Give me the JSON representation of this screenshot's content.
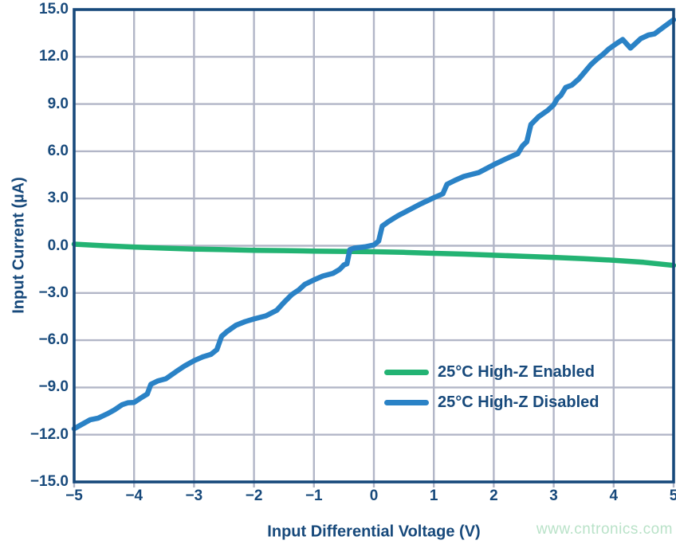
{
  "watermark": {
    "text": "www.cntronics.com",
    "color": "#b9e2c8"
  },
  "style": {
    "axis_text_color": "#17497B",
    "border_color": "#17497B",
    "grid_color": "#b2b6c7",
    "background": "#ffffff",
    "line_width": 6.5,
    "grid_width": 2.4,
    "border_width": 3.6
  },
  "chart_data": {
    "type": "line",
    "title": "",
    "xlabel": "Input Differential Voltage (V)",
    "ylabel": "Input Current (µA)",
    "xlim": [
      -5,
      5
    ],
    "ylim": [
      -15,
      15
    ],
    "grid": true,
    "x_ticks": [
      -5,
      -4,
      -3,
      -2,
      -1,
      0,
      1,
      2,
      3,
      4,
      5
    ],
    "x_tick_labels": [
      "−5",
      "−4",
      "−3",
      "−2",
      "−1",
      "0",
      "1",
      "2",
      "3",
      "4",
      "5"
    ],
    "y_ticks": [
      15,
      12,
      9,
      6,
      3,
      0,
      -3,
      -6,
      -9,
      -12,
      -15
    ],
    "y_tick_labels": [
      "15.0",
      "12.0",
      "9.0",
      "6.0",
      "3.0",
      "0.0",
      "−3.0",
      "−6.0",
      "−9.0",
      "−12.0",
      "−15.0"
    ],
    "legend_position": "inside lower right",
    "series": [
      {
        "name": "25°C High-Z Enabled",
        "color": "#23B373",
        "points": [
          [
            -5.0,
            0.1
          ],
          [
            -4.5,
            0.0
          ],
          [
            -4.0,
            -0.08
          ],
          [
            -3.5,
            -0.15
          ],
          [
            -3.0,
            -0.21
          ],
          [
            -2.5,
            -0.25
          ],
          [
            -2.0,
            -0.29
          ],
          [
            -1.5,
            -0.31
          ],
          [
            -1.0,
            -0.34
          ],
          [
            -0.5,
            -0.36
          ],
          [
            0.0,
            -0.38
          ],
          [
            0.5,
            -0.42
          ],
          [
            1.0,
            -0.48
          ],
          [
            1.5,
            -0.53
          ],
          [
            2.0,
            -0.6
          ],
          [
            2.5,
            -0.67
          ],
          [
            3.0,
            -0.74
          ],
          [
            3.5,
            -0.82
          ],
          [
            4.0,
            -0.92
          ],
          [
            4.5,
            -1.05
          ],
          [
            5.0,
            -1.25
          ]
        ]
      },
      {
        "name": "25°C High-Z Disabled",
        "color": "#2A82C6",
        "points": [
          [
            -5.0,
            -11.62
          ],
          [
            -4.85,
            -11.3
          ],
          [
            -4.73,
            -11.05
          ],
          [
            -4.6,
            -10.95
          ],
          [
            -4.45,
            -10.68
          ],
          [
            -4.33,
            -10.43
          ],
          [
            -4.2,
            -10.1
          ],
          [
            -4.1,
            -9.97
          ],
          [
            -4.0,
            -9.95
          ],
          [
            -3.86,
            -9.6
          ],
          [
            -3.78,
            -9.42
          ],
          [
            -3.72,
            -8.8
          ],
          [
            -3.6,
            -8.58
          ],
          [
            -3.47,
            -8.45
          ],
          [
            -3.3,
            -8.0
          ],
          [
            -3.15,
            -7.62
          ],
          [
            -3.0,
            -7.3
          ],
          [
            -2.85,
            -7.05
          ],
          [
            -2.72,
            -6.9
          ],
          [
            -2.62,
            -6.6
          ],
          [
            -2.54,
            -5.75
          ],
          [
            -2.45,
            -5.45
          ],
          [
            -2.3,
            -5.05
          ],
          [
            -2.15,
            -4.82
          ],
          [
            -2.0,
            -4.65
          ],
          [
            -1.8,
            -4.45
          ],
          [
            -1.62,
            -4.1
          ],
          [
            -1.5,
            -3.6
          ],
          [
            -1.37,
            -3.1
          ],
          [
            -1.25,
            -2.8
          ],
          [
            -1.15,
            -2.45
          ],
          [
            -1.0,
            -2.17
          ],
          [
            -0.85,
            -1.92
          ],
          [
            -0.68,
            -1.75
          ],
          [
            -0.57,
            -1.5
          ],
          [
            -0.5,
            -1.22
          ],
          [
            -0.45,
            -1.15
          ],
          [
            -0.4,
            -0.25
          ],
          [
            -0.33,
            -0.15
          ],
          [
            -0.15,
            -0.07
          ],
          [
            0.0,
            0.05
          ],
          [
            0.08,
            0.3
          ],
          [
            0.14,
            1.25
          ],
          [
            0.25,
            1.55
          ],
          [
            0.4,
            1.9
          ],
          [
            0.55,
            2.2
          ],
          [
            0.75,
            2.6
          ],
          [
            1.0,
            3.05
          ],
          [
            1.15,
            3.3
          ],
          [
            1.22,
            3.9
          ],
          [
            1.35,
            4.15
          ],
          [
            1.5,
            4.4
          ],
          [
            1.75,
            4.65
          ],
          [
            2.0,
            5.15
          ],
          [
            2.25,
            5.6
          ],
          [
            2.4,
            5.85
          ],
          [
            2.48,
            6.35
          ],
          [
            2.55,
            6.6
          ],
          [
            2.62,
            7.7
          ],
          [
            2.75,
            8.2
          ],
          [
            2.9,
            8.6
          ],
          [
            3.0,
            8.95
          ],
          [
            3.06,
            9.35
          ],
          [
            3.12,
            9.55
          ],
          [
            3.2,
            10.05
          ],
          [
            3.3,
            10.2
          ],
          [
            3.42,
            10.6
          ],
          [
            3.52,
            11.05
          ],
          [
            3.62,
            11.5
          ],
          [
            3.72,
            11.85
          ],
          [
            3.82,
            12.15
          ],
          [
            3.92,
            12.5
          ],
          [
            4.05,
            12.85
          ],
          [
            4.15,
            13.1
          ],
          [
            4.28,
            12.55
          ],
          [
            4.45,
            13.15
          ],
          [
            4.58,
            13.38
          ],
          [
            4.68,
            13.45
          ],
          [
            4.82,
            13.85
          ],
          [
            5.0,
            14.35
          ]
        ]
      }
    ]
  }
}
